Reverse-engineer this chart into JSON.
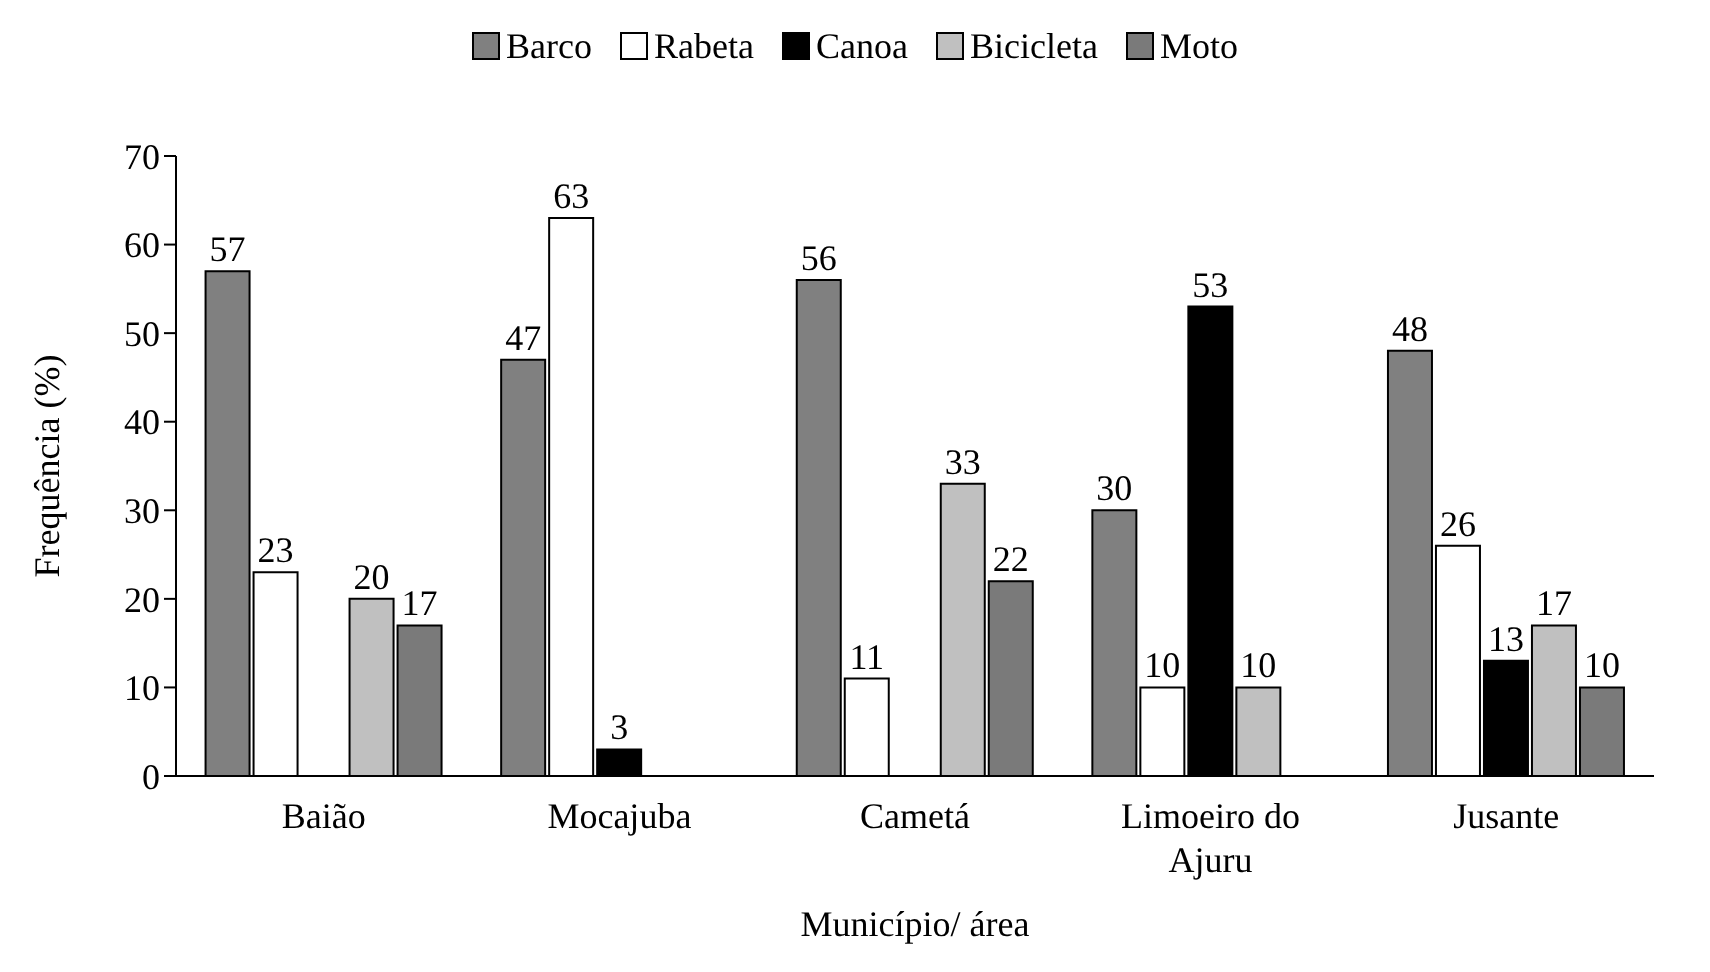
{
  "chart_data": {
    "type": "bar",
    "xlabel": "Município/ área",
    "ylabel": "Frequência (%)",
    "categories": [
      "Baião",
      "Mocajuba",
      "Cametá",
      "Limoeiro do Ajuru",
      "Jusante"
    ],
    "series": [
      {
        "name": "Barco",
        "color": "#808080",
        "values": [
          57,
          47,
          56,
          30,
          48
        ],
        "value_labels": [
          "57",
          "47",
          "56",
          "30",
          "48"
        ]
      },
      {
        "name": "Rabeta",
        "color": "#ffffff",
        "values": [
          23,
          63,
          11,
          10,
          26
        ],
        "value_labels": [
          "23",
          "63",
          "11",
          "10",
          "26"
        ]
      },
      {
        "name": "Canoa",
        "color": "#000000",
        "values": [
          0,
          3,
          0,
          53,
          13
        ],
        "value_labels": [
          null,
          "3",
          null,
          "53",
          "13"
        ]
      },
      {
        "name": "Bicicleta",
        "color": "#c0c0c0",
        "values": [
          20,
          0,
          33,
          10,
          17
        ],
        "value_labels": [
          "20",
          null,
          "33",
          "10",
          "17"
        ]
      },
      {
        "name": "Moto",
        "color": "#7a7a7a",
        "values": [
          17,
          0,
          22,
          0,
          10
        ],
        "value_labels": [
          "17",
          null,
          "22",
          null,
          "10"
        ]
      }
    ],
    "ylim": [
      0,
      70
    ],
    "yticks": [
      0,
      10,
      20,
      30,
      40,
      50,
      60,
      70
    ],
    "grid": false,
    "legend": "top"
  }
}
